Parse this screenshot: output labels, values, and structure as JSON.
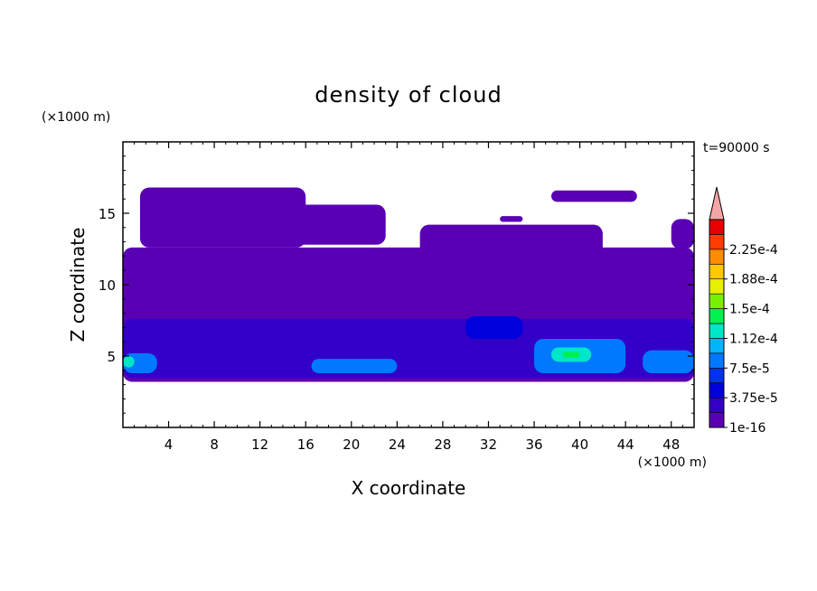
{
  "chart_data": {
    "type": "heatmap",
    "title": "density of cloud",
    "xlabel": "X coordinate",
    "ylabel": "Z coordinate",
    "x_unit": "(×1000 m)",
    "y_unit": "(×1000 m)",
    "time_label": "t=90000 s",
    "xlim": [
      0,
      50
    ],
    "ylim": [
      0,
      20
    ],
    "x_ticks": [
      4,
      8,
      12,
      16,
      20,
      24,
      28,
      32,
      36,
      40,
      44,
      48
    ],
    "y_ticks": [
      5,
      10,
      15
    ],
    "grid": false,
    "colorbar": {
      "position": "right",
      "extend": "max",
      "extend_color": "#f4a6a6",
      "levels": [
        1e-16,
        1.875e-05,
        3.75e-05,
        5.625e-05,
        7.5e-05,
        9.375e-05,
        0.0001125,
        0.00013125,
        0.00015,
        0.00016875,
        0.0001875,
        0.00020625,
        0.000225,
        0.00024375
      ],
      "tick_labels": [
        "1e-16",
        "3.75e-5",
        "7.5e-5",
        "1.12e-4",
        "1.5e-4",
        "1.88e-4",
        "2.25e-4"
      ],
      "colors": [
        "#5a00b4",
        "#3200c8",
        "#0000dc",
        "#0032f0",
        "#0078ff",
        "#00b4ff",
        "#00e6c8",
        "#00f050",
        "#78f000",
        "#e6f000",
        "#ffc800",
        "#ff8c00",
        "#ff3c00",
        "#e60000"
      ]
    },
    "regions": [
      {
        "level": 0,
        "x": [
          0.0,
          50.0
        ],
        "z": [
          3.2,
          12.6
        ],
        "description": "main cloud layer"
      },
      {
        "level": 0,
        "x": [
          1.5,
          16.0
        ],
        "z": [
          12.6,
          16.8
        ],
        "description": "upper cloud left"
      },
      {
        "level": 0,
        "x": [
          11.5,
          23.0
        ],
        "z": [
          12.8,
          15.6
        ],
        "description": "upper cloud mid-left"
      },
      {
        "level": 0,
        "x": [
          26.0,
          42.0
        ],
        "z": [
          10.8,
          14.2
        ],
        "description": "upper cloud mid-right"
      },
      {
        "level": 0,
        "x": [
          37.5,
          45.0
        ],
        "z": [
          15.8,
          16.6
        ],
        "description": "upper patch right"
      },
      {
        "level": 0,
        "x": [
          33.0,
          35.0
        ],
        "z": [
          14.4,
          14.8
        ],
        "description": "small upper patch"
      },
      {
        "level": 0,
        "x": [
          48.0,
          50.0
        ],
        "z": [
          12.5,
          14.6
        ],
        "description": "upper cloud edge right"
      },
      {
        "level": 1,
        "x": [
          0.0,
          50.0
        ],
        "z": [
          3.5,
          7.6
        ],
        "description": "lower denser band"
      },
      {
        "level": 2,
        "x": [
          30.0,
          35.0
        ],
        "z": [
          6.2,
          7.8
        ],
        "description": "core near x=32"
      },
      {
        "level": 4,
        "x": [
          0.0,
          3.0
        ],
        "z": [
          3.8,
          5.2
        ],
        "description": "dense core left edge"
      },
      {
        "level": 4,
        "x": [
          16.5,
          24.0
        ],
        "z": [
          3.8,
          4.8
        ],
        "description": "dense core x=16-24"
      },
      {
        "level": 4,
        "x": [
          36.0,
          44.0
        ],
        "z": [
          3.8,
          6.2
        ],
        "description": "dense core x=36-44"
      },
      {
        "level": 4,
        "x": [
          45.5,
          50.0
        ],
        "z": [
          3.8,
          5.4
        ],
        "description": "dense core right edge"
      },
      {
        "level": 6,
        "x": [
          37.5,
          41.0
        ],
        "z": [
          4.6,
          5.6
        ],
        "description": "peak x=38-40"
      },
      {
        "level": 6,
        "x": [
          0.0,
          1.0
        ],
        "z": [
          4.2,
          5.0
        ],
        "description": "peak left edge"
      },
      {
        "level": 7,
        "x": [
          38.5,
          40.0
        ],
        "z": [
          4.9,
          5.3
        ],
        "description": "maximum near x=39"
      }
    ]
  }
}
